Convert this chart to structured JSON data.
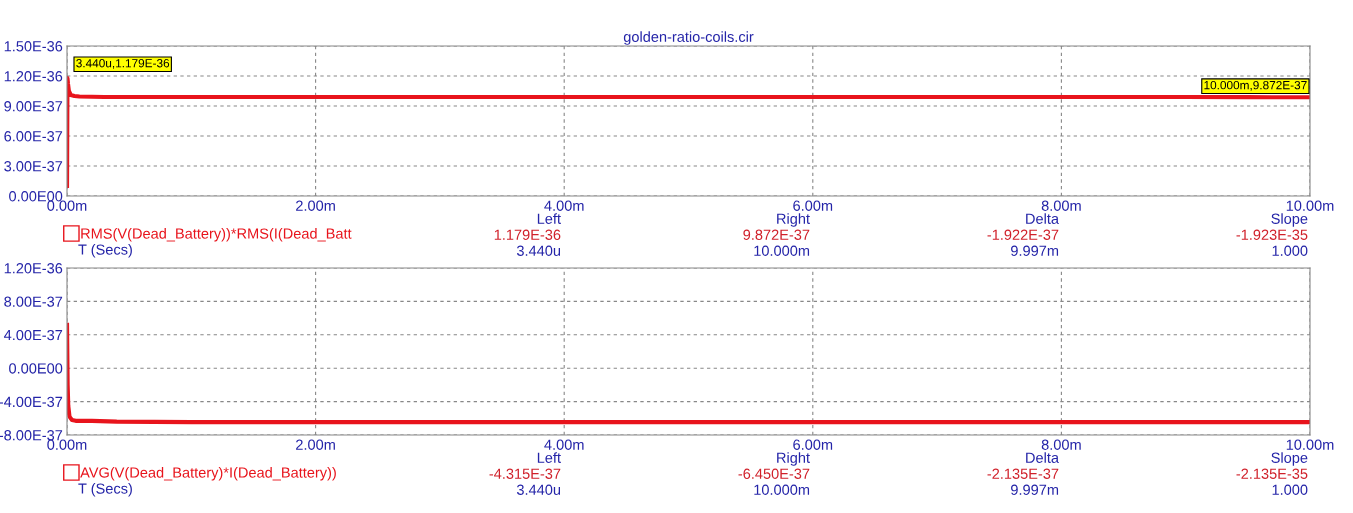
{
  "chart_data": [
    {
      "type": "line",
      "title": "golden-ratio-coils.cir",
      "xlabel": "T (Secs)",
      "x": [
        0,
        0.00344,
        0.008,
        0.015,
        0.03,
        0.06,
        0.1,
        0.3,
        0.6,
        1,
        2,
        3,
        4,
        5,
        6,
        7,
        8,
        9,
        9.5,
        10
      ],
      "series": [
        {
          "name": "RMS(V(Dead_Battery))*RMS(I(Dead_Batt",
          "color": "#e8141c",
          "values": [
            1e-37,
            1.179e-36,
            1.12e-36,
            1.05e-36,
            1.01e-36,
            1e-36,
            9.95e-37,
            9.9e-37,
            9.9e-37,
            9.9e-37,
            9.9e-37,
            9.9e-37,
            9.9e-37,
            9.9e-37,
            9.9e-37,
            9.9e-37,
            9.9e-37,
            9.9e-37,
            9.88e-37,
            9.872e-37
          ]
        }
      ],
      "xlim": [
        0,
        10
      ],
      "xticks": [
        {
          "value": 0,
          "label": "0.00m"
        },
        {
          "value": 2,
          "label": "2.00m"
        },
        {
          "value": 4,
          "label": "4.00m"
        },
        {
          "value": 6,
          "label": "6.00m"
        },
        {
          "value": 8,
          "label": "8.00m"
        },
        {
          "value": 10,
          "label": "10.00m"
        }
      ],
      "ylim": [
        0,
        1.5e-36
      ],
      "yticks": [
        {
          "value": 0,
          "label": "0.00E00"
        },
        {
          "value": 3e-37,
          "label": "3.00E-37"
        },
        {
          "value": 6e-37,
          "label": "6.00E-37"
        },
        {
          "value": 9e-37,
          "label": "9.00E-37"
        },
        {
          "value": 1.2e-36,
          "label": "1.20E-36"
        },
        {
          "value": 1.5e-36,
          "label": "1.50E-36"
        }
      ],
      "grid": true,
      "legend": "bottom left",
      "annotations": [
        "Left",
        "Right",
        "Delta",
        "Slope",
        "1.179E-36",
        "9.872E-37",
        "-1.922E-37",
        "-1.923E-35",
        "3.440u",
        "10.000m",
        "9.997m",
        "1.000",
        {
          "text": "3.440u,1.179E-36",
          "x": 0.00344,
          "y": 1.179e-36
        },
        {
          "text": "10.000m,9.872E-37",
          "x": 10,
          "y": 9.872e-37
        }
      ]
    },
    {
      "type": "line",
      "xlabel": "T (Secs)",
      "x": [
        0,
        0.005,
        0.01,
        0.02,
        0.04,
        0.07,
        0.1,
        0.2,
        0.4,
        1,
        2,
        4,
        6,
        8,
        10
      ],
      "series": [
        {
          "name": "AVG(V(Dead_Battery)*I(Dead_Battery))",
          "color": "#e8141c",
          "values": [
            5.2e-37,
            -2e-37,
            -4.5e-37,
            -5.8e-37,
            -6.2e-37,
            -6.3e-37,
            -6.3e-37,
            -6.3e-37,
            -6.4e-37,
            -6.45e-37,
            -6.45e-37,
            -6.45e-37,
            -6.45e-37,
            -6.45e-37,
            -6.45e-37
          ]
        }
      ],
      "xlim": [
        0,
        10
      ],
      "xticks": [
        {
          "value": 0,
          "label": "0.00m"
        },
        {
          "value": 2,
          "label": "2.00m"
        },
        {
          "value": 4,
          "label": "4.00m"
        },
        {
          "value": 6,
          "label": "6.00m"
        },
        {
          "value": 8,
          "label": "8.00m"
        },
        {
          "value": 10,
          "label": "10.00m"
        }
      ],
      "ylim": [
        -8e-37,
        1.2e-36
      ],
      "yticks": [
        {
          "value": -8e-37,
          "label": "-8.00E-37"
        },
        {
          "value": -4e-37,
          "label": "-4.00E-37"
        },
        {
          "value": 0,
          "label": "0.00E00"
        },
        {
          "value": 4e-37,
          "label": "4.00E-37"
        },
        {
          "value": 8e-37,
          "label": "8.00E-37"
        },
        {
          "value": 1.2e-36,
          "label": "1.20E-36"
        }
      ],
      "grid": true,
      "legend": "bottom left",
      "annotations": [
        "Left",
        "Right",
        "Delta",
        "Slope",
        "-4.315E-37",
        "-6.450E-37",
        "-2.135E-37",
        "-2.135E-35",
        "3.440u",
        "10.000m",
        "9.997m",
        "1.000"
      ]
    }
  ]
}
